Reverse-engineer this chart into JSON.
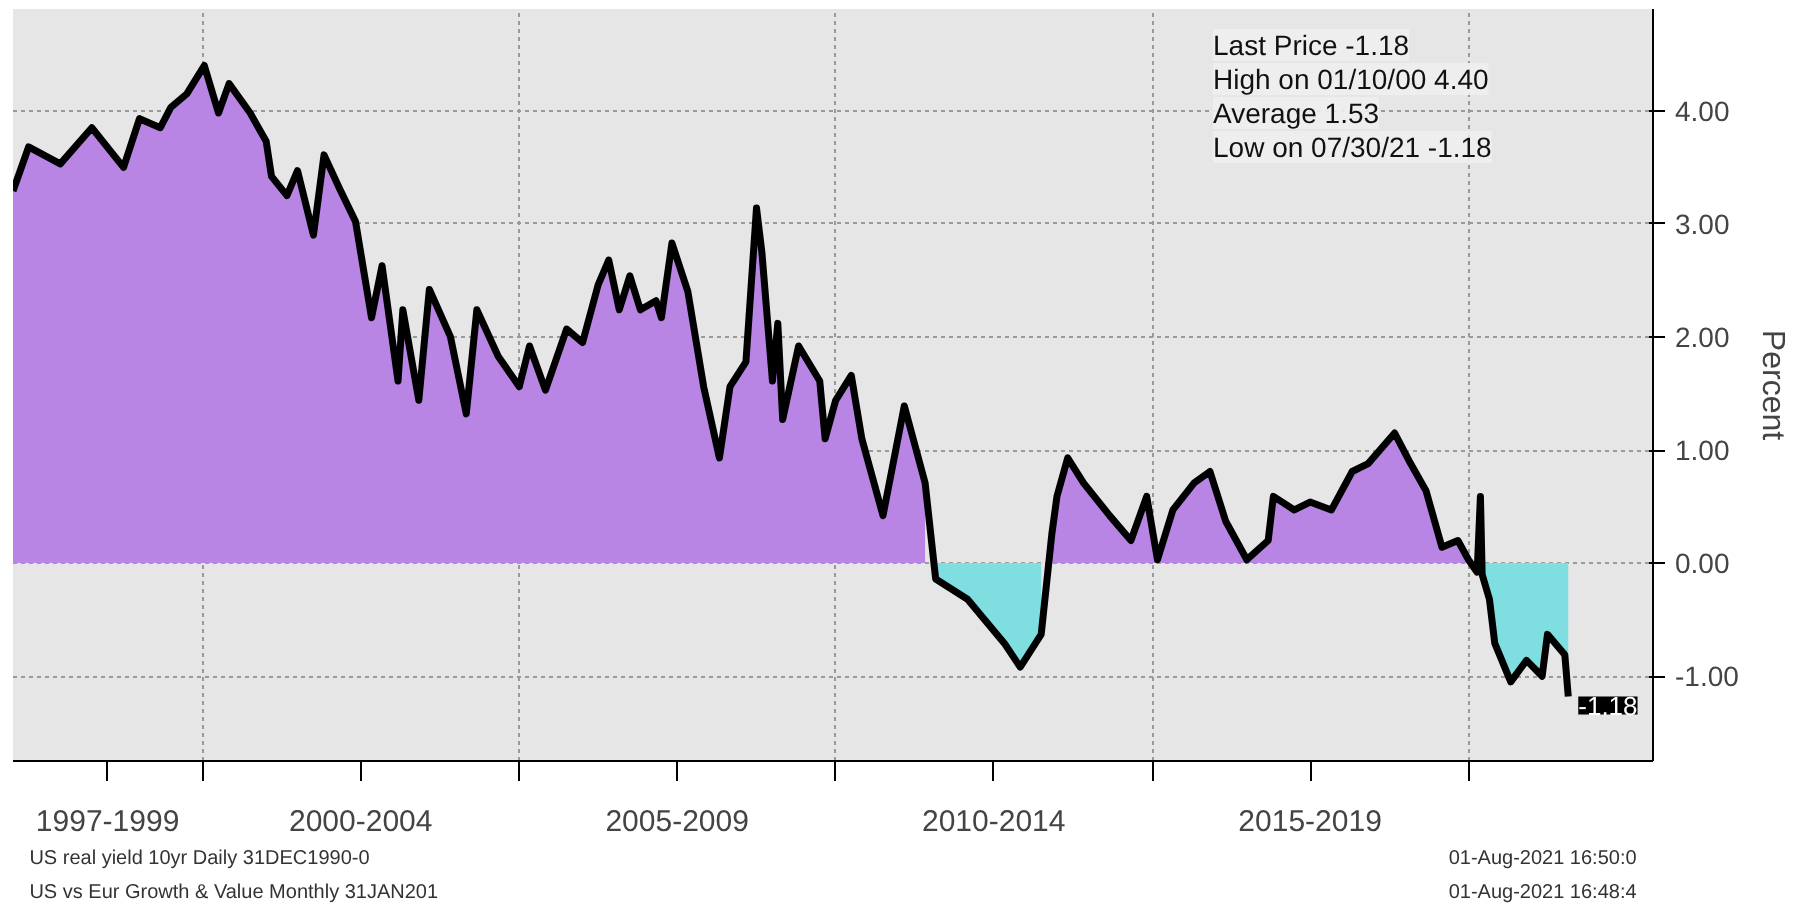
{
  "chart_data": {
    "type": "area",
    "ylabel": "Percent",
    "x": [
      "1997-01",
      "1997-04",
      "1997-10",
      "1998-04",
      "1998-10",
      "1999-01",
      "1999-05",
      "1999-07",
      "1999-10",
      "2000-01-10",
      "2000-04",
      "2000-06",
      "2000-10",
      "2001-01",
      "2001-02",
      "2001-05",
      "2001-07",
      "2001-10",
      "2001-12",
      "2002-03",
      "2002-06",
      "2002-09",
      "2002-11",
      "2003-02",
      "2003-03",
      "2003-06",
      "2003-08",
      "2003-12",
      "2004-03",
      "2004-05",
      "2004-09",
      "2005-01",
      "2005-03",
      "2005-06",
      "2005-10",
      "2006-01",
      "2006-04",
      "2006-06",
      "2006-08",
      "2006-10",
      "2006-12",
      "2007-03",
      "2007-04",
      "2007-06",
      "2007-09",
      "2007-12",
      "2008-03",
      "2008-05",
      "2008-08",
      "2008-10",
      "2008-11",
      "2009-01",
      "2009-02",
      "2009-03",
      "2009-06",
      "2009-10",
      "2009-11",
      "2010-01",
      "2010-04",
      "2010-06",
      "2010-10",
      "2011-02",
      "2011-06",
      "2011-08",
      "2012-02",
      "2012-09",
      "2012-12",
      "2013-04",
      "2013-06",
      "2013-07",
      "2013-09",
      "2013-12",
      "2014-05",
      "2014-09",
      "2014-12",
      "2015-02",
      "2015-05",
      "2015-09",
      "2015-12",
      "2016-03",
      "2016-07",
      "2016-11",
      "2016-12",
      "2017-04",
      "2017-07",
      "2017-11",
      "2018-03",
      "2018-06",
      "2018-11",
      "2019-02",
      "2019-05",
      "2019-08",
      "2019-11",
      "2020-01",
      "2020-02-20",
      "2020-03-10",
      "2020-03-20",
      "2020-05",
      "2020-06",
      "2020-09",
      "2020-12",
      "2021-03",
      "2021-04",
      "2021-07-10",
      "2021-07-30"
    ],
    "series": [
      {
        "color": "#b985e4",
        "values": [
          3.29,
          3.68,
          3.53,
          3.85,
          3.5,
          3.93,
          3.85,
          4.03,
          4.15,
          4.4,
          3.98,
          4.24,
          3.98,
          3.73,
          3.42,
          3.25,
          3.47,
          2.9,
          3.61,
          3.31,
          3.02,
          2.17,
          2.63,
          1.61,
          2.24,
          1.44,
          2.42,
          2.0,
          1.32,
          2.24,
          1.83,
          1.56,
          1.92,
          1.53,
          2.07,
          1.95,
          2.46,
          2.68,
          2.24,
          2.54,
          2.24,
          2.32,
          2.17,
          2.83,
          2.4,
          1.56,
          0.93,
          1.56,
          1.78,
          3.14,
          2.75,
          1.61,
          2.12,
          1.27,
          1.92,
          1.61,
          1.1,
          1.44,
          1.66,
          1.1,
          0.42,
          1.39,
          0.71,
          null,
          null,
          null,
          null,
          null,
          0.25,
          0.59,
          0.93,
          0.71,
          0.42,
          0.2,
          0.59,
          0.03,
          0.47,
          0.71,
          0.81,
          0.37,
          0.03,
          0.2,
          0.59,
          0.47,
          0.54,
          0.47,
          0.81,
          0.88,
          1.15,
          0.88,
          0.64,
          0.14,
          0.2,
          0.03,
          null,
          null,
          null,
          null,
          null,
          null,
          null,
          null,
          null,
          null,
          null
        ]
      },
      {
        "color": "#7fdfe0",
        "values": [
          null,
          null,
          null,
          null,
          null,
          null,
          null,
          null,
          null,
          null,
          null,
          null,
          null,
          null,
          null,
          null,
          null,
          null,
          null,
          null,
          null,
          null,
          null,
          null,
          null,
          null,
          null,
          null,
          null,
          null,
          null,
          null,
          null,
          null,
          null,
          null,
          null,
          null,
          null,
          null,
          null,
          null,
          null,
          null,
          null,
          null,
          null,
          null,
          null,
          null,
          null,
          null,
          null,
          null,
          null,
          null,
          null,
          null,
          null,
          null,
          null,
          null,
          null,
          -0.14,
          -0.32,
          -0.71,
          -0.92,
          -0.63,
          null,
          null,
          null,
          null,
          null,
          null,
          null,
          null,
          null,
          null,
          null,
          null,
          null,
          null,
          null,
          null,
          null,
          null,
          null,
          null,
          null,
          null,
          null,
          null,
          null,
          null,
          null,
          null,
          -0.1,
          -0.32,
          -0.71,
          -1.05,
          -0.86,
          -1.0,
          -0.63,
          -0.81,
          -1.18
        ]
      },
      {
        "type": "line",
        "color": "#000000",
        "values": [
          3.29,
          3.68,
          3.53,
          3.85,
          3.5,
          3.93,
          3.85,
          4.03,
          4.15,
          4.4,
          3.98,
          4.24,
          3.98,
          3.73,
          3.42,
          3.25,
          3.47,
          2.9,
          3.61,
          3.31,
          3.02,
          2.17,
          2.63,
          1.61,
          2.24,
          1.44,
          2.42,
          2.0,
          1.32,
          2.24,
          1.83,
          1.56,
          1.92,
          1.53,
          2.07,
          1.95,
          2.46,
          2.68,
          2.24,
          2.54,
          2.24,
          2.32,
          2.17,
          2.83,
          2.4,
          1.56,
          0.93,
          1.56,
          1.78,
          3.14,
          2.75,
          1.61,
          2.12,
          1.27,
          1.92,
          1.61,
          1.1,
          1.44,
          1.66,
          1.1,
          0.42,
          1.39,
          0.71,
          -0.14,
          -0.32,
          -0.71,
          -0.92,
          -0.63,
          0.25,
          0.59,
          0.93,
          0.71,
          0.42,
          0.2,
          0.59,
          0.03,
          0.47,
          0.71,
          0.81,
          0.37,
          0.03,
          0.2,
          0.59,
          0.47,
          0.54,
          0.47,
          0.81,
          0.88,
          1.15,
          0.88,
          0.64,
          0.14,
          0.2,
          0.03,
          -0.08,
          0.59,
          -0.1,
          -0.32,
          -0.71,
          -1.05,
          -0.86,
          -1.0,
          -0.63,
          -0.81,
          -1.18
        ]
      }
    ],
    "xlim": [
      "1997-01-01",
      "2022-12-01"
    ],
    "xticks": [
      {
        "value": "1998-07-01",
        "label": "1997-1999"
      },
      {
        "value": "2000-01-01",
        "label": null
      },
      {
        "value": "2002-07-01",
        "label": "2000-2004"
      },
      {
        "value": "2005-01-01",
        "label": null
      },
      {
        "value": "2007-07-01",
        "label": "2005-2009"
      },
      {
        "value": "2010-01-01",
        "label": null
      },
      {
        "value": "2012-07-01",
        "label": "2010-2014"
      },
      {
        "value": "2015-01-01",
        "label": null
      },
      {
        "value": "2017-07-01",
        "label": "2015-2019"
      },
      {
        "value": "2020-01-01",
        "label": null
      }
    ],
    "ylim": [
      -1.75,
      4.9
    ],
    "yticks": [
      {
        "value": -1,
        "label": "-1.00"
      },
      {
        "value": 0,
        "label": "0.00"
      },
      {
        "value": 1,
        "label": "1.00"
      },
      {
        "value": 2,
        "label": "2.00"
      },
      {
        "value": 3,
        "label": "3.00"
      },
      {
        "value": 4,
        "label": "4.00"
      }
    ],
    "grid": true,
    "marker": "none",
    "line_style": "solid",
    "annotations": [
      "Last Price -1.18",
      "High on 01/10/00 4.40",
      "Average 1.53",
      "Low on 07/30/21 -1.18",
      {
        "text": "-1.18",
        "x": "2021-07-30",
        "y": -1.18
      },
      "US real yield 10yr  Daily 31DEC1990-0",
      "01-Aug-2021 16:50:0",
      "US vs Eur Growth & Value  Monthly 31JAN201",
      "01-Aug-2021 16:48:4"
    ]
  }
}
